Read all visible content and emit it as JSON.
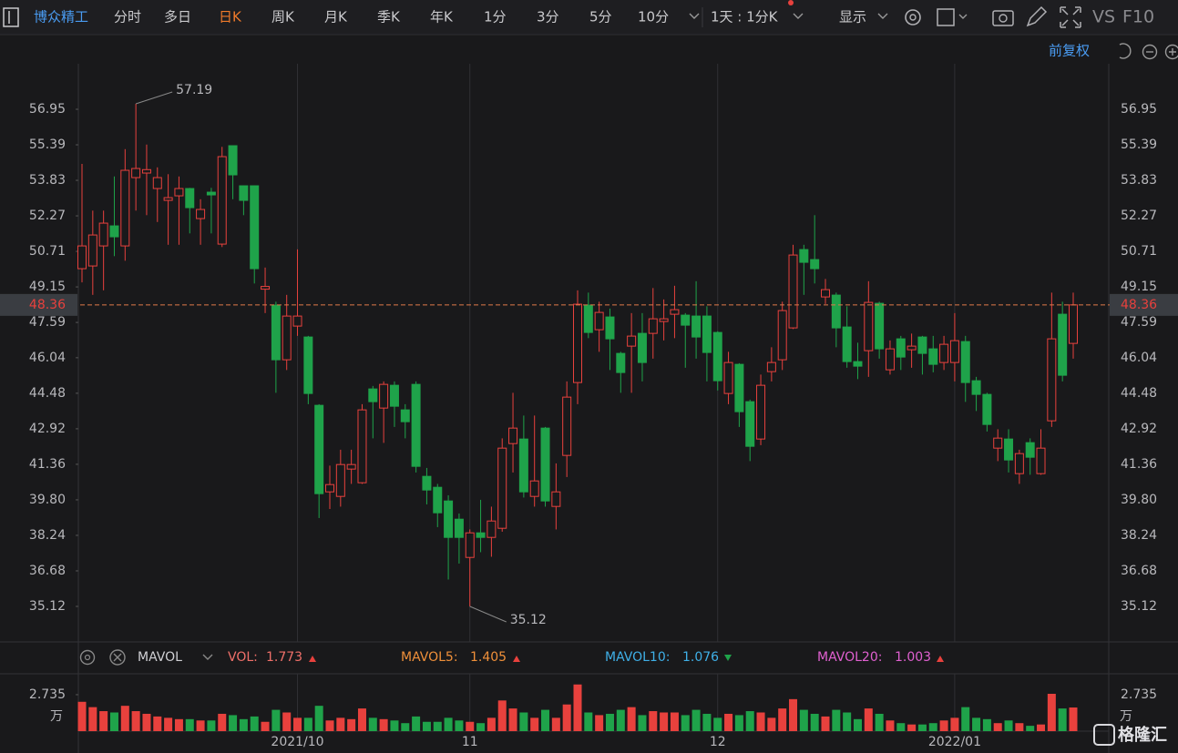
{
  "toolbar": {
    "stock_name": "博众精工",
    "tabs": [
      "分时",
      "多日",
      "日K",
      "周K",
      "月K",
      "季K",
      "年K",
      "1分",
      "3分",
      "5分",
      "10分"
    ],
    "active_tab": "日K",
    "period_select": "1天 : 1分K",
    "display": "显示",
    "vs": "VS",
    "f10": "F10",
    "adjust": "前复权"
  },
  "chart_data": {
    "type": "candlestick",
    "up_color": "#e8413d",
    "down_color": "#1fa34a",
    "categories": [
      null,
      null,
      null,
      null,
      null,
      null,
      null,
      null,
      null,
      null,
      null,
      null,
      null,
      null,
      null,
      null,
      null,
      null,
      null,
      null,
      "2021/10",
      null,
      null,
      null,
      null,
      null,
      null,
      null,
      null,
      null,
      null,
      null,
      null,
      null,
      null,
      null,
      "11",
      null,
      null,
      null,
      null,
      null,
      null,
      null,
      null,
      null,
      null,
      null,
      null,
      null,
      null,
      null,
      null,
      null,
      null,
      null,
      null,
      null,
      null,
      "12",
      null,
      null,
      null,
      null,
      null,
      null,
      null,
      null,
      null,
      null,
      null,
      null,
      null,
      null,
      null,
      null,
      null,
      null,
      null,
      null,
      null,
      "2022/01",
      null,
      null,
      null,
      null,
      null,
      null,
      null,
      null,
      null,
      null,
      null
    ],
    "open": [
      49.95,
      50.07,
      50.95,
      51.83,
      50.95,
      53.95,
      54.15,
      53.47,
      52.95,
      53.15,
      53.47,
      52.15,
      53.31,
      51.03,
      55.35,
      53.59,
      53.59,
      49.05,
      48.35,
      45.95,
      47.43,
      46.95,
      43.95,
      40.15,
      39.95,
      41.15,
      40.55,
      44.67,
      43.83,
      44.83,
      43.75,
      44.87,
      40.83,
      40.35,
      39.75,
      38.95,
      37.27,
      38.35,
      38.15,
      38.55,
      42.27,
      42.47,
      39.95,
      42.95,
      39.51,
      41.75,
      44.95,
      48.35,
      47.27,
      47.83,
      46.23,
      46.55,
      47.11,
      47.11,
      47.63,
      47.95,
      47.91,
      47.87,
      47.87,
      47.15,
      44.47,
      45.75,
      44.11,
      42.47,
      45.43,
      45.95,
      47.35,
      50.79,
      50.35,
      48.71,
      48.79,
      47.39,
      45.87,
      46.35,
      48.43,
      45.51,
      46.87,
      46.39,
      46.95,
      46.43,
      45.83,
      45.83,
      46.75,
      45.03,
      44.43,
      42.07,
      42.47,
      40.95,
      42.31,
      40.95,
      43.27,
      47.95,
      46.67
    ],
    "high": [
      54.55,
      52.5,
      52.5,
      54.0,
      55.2,
      57.19,
      55.4,
      54.4,
      54.1,
      54.0,
      53.5,
      53.0,
      53.5,
      55.3,
      55.35,
      53.6,
      53.6,
      50.0,
      48.5,
      48.8,
      50.8,
      47.0,
      44.0,
      41.3,
      42.0,
      42.0,
      44.0,
      44.8,
      45.0,
      45.0,
      44.0,
      45.0,
      41.2,
      40.5,
      40.0,
      39.2,
      38.5,
      39.8,
      39.5,
      42.5,
      44.5,
      43.5,
      43.5,
      43.0,
      41.4,
      45.0,
      49.0,
      48.9,
      48.5,
      48.2,
      46.3,
      48.0,
      48.0,
      49.1,
      48.6,
      49.2,
      48.0,
      49.4,
      48.3,
      47.2,
      46.3,
      45.8,
      44.2,
      45.3,
      46.5,
      48.5,
      51.0,
      51.0,
      52.3,
      49.5,
      48.9,
      48.3,
      46.7,
      49.4,
      48.5,
      46.8,
      47.0,
      47.1,
      47.0,
      47.0,
      47.0,
      48.0,
      47.0,
      45.2,
      44.5,
      42.9,
      42.9,
      42.0,
      42.5,
      42.9,
      48.9,
      48.5,
      48.9
    ],
    "low": [
      49.35,
      48.8,
      49.0,
      50.5,
      50.3,
      52.5,
      52.3,
      52.0,
      51.0,
      51.0,
      51.5,
      51.0,
      51.5,
      50.9,
      53.0,
      52.3,
      49.3,
      48.0,
      44.5,
      45.5,
      47.0,
      44.0,
      39.0,
      39.4,
      39.5,
      40.5,
      40.5,
      42.5,
      42.3,
      43.0,
      42.5,
      41.0,
      39.6,
      38.6,
      36.3,
      37.0,
      35.12,
      37.5,
      37.3,
      38.4,
      41.0,
      39.9,
      39.5,
      39.5,
      38.5,
      40.8,
      44.0,
      46.9,
      46.3,
      45.5,
      44.5,
      44.5,
      45.0,
      46.0,
      46.8,
      46.9,
      45.6,
      46.0,
      45.0,
      44.6,
      44.0,
      43.0,
      41.5,
      42.2,
      45.0,
      45.5,
      47.3,
      48.8,
      49.3,
      48.4,
      46.5,
      45.6,
      45.1,
      45.2,
      46.0,
      45.3,
      45.5,
      45.6,
      45.3,
      45.4,
      45.5,
      45.0,
      44.1,
      43.7,
      42.8,
      41.5,
      41.0,
      40.5,
      40.9,
      40.9,
      43.0,
      45.0,
      46.0
    ],
    "close": [
      50.95,
      51.43,
      51.95,
      51.35,
      54.27,
      54.35,
      54.3,
      53.95,
      53.07,
      53.47,
      52.63,
      52.55,
      53.19,
      54.87,
      54.07,
      52.95,
      49.95,
      49.17,
      45.95,
      47.87,
      47.87,
      44.47,
      40.07,
      40.47,
      41.35,
      41.35,
      43.75,
      44.11,
      44.87,
      43.91,
      43.23,
      41.27,
      40.23,
      39.23,
      38.15,
      38.15,
      38.35,
      38.15,
      38.87,
      42.07,
      42.95,
      40.15,
      40.63,
      39.75,
      40.15,
      44.31,
      48.39,
      47.15,
      48.03,
      46.87,
      45.39,
      46.99,
      45.83,
      47.75,
      47.75,
      48.15,
      47.47,
      46.95,
      46.27,
      45.03,
      45.83,
      43.67,
      42.15,
      44.83,
      45.83,
      48.11,
      50.55,
      50.23,
      49.95,
      49.03,
      47.35,
      45.87,
      45.67,
      48.47,
      46.43,
      46.43,
      46.07,
      46.55,
      46.23,
      45.75,
      46.63,
      46.79,
      44.95,
      44.43,
      43.11,
      42.51,
      41.55,
      41.83,
      41.67,
      42.07,
      46.87,
      45.27,
      48.36
    ],
    "ylim": [
      33.56,
      58.51
    ],
    "yticks": [
      35.12,
      36.68,
      38.24,
      {
        "value": 39.8,
        "label": "39.80"
      },
      41.36,
      42.92,
      44.48,
      46.04,
      47.59,
      49.15,
      50.71,
      52.27,
      53.83,
      55.39,
      56.95
    ],
    "last_price": 48.36,
    "last_price_color": "#e8413d",
    "volume": {
      "values": [
        2.2,
        1.8,
        1.5,
        1.4,
        1.9,
        1.5,
        1.3,
        1.1,
        1.0,
        0.9,
        0.9,
        0.8,
        0.8,
        1.3,
        1.2,
        0.9,
        1.1,
        0.7,
        1.6,
        1.4,
        1.0,
        1.0,
        1.9,
        0.8,
        1.0,
        0.9,
        1.7,
        1.0,
        0.9,
        0.8,
        0.6,
        1.1,
        0.7,
        0.7,
        1.0,
        0.8,
        0.7,
        0.6,
        1.0,
        2.3,
        1.7,
        1.4,
        1.0,
        1.6,
        1.0,
        2.0,
        3.5,
        1.4,
        1.2,
        1.3,
        1.6,
        1.8,
        1.2,
        1.5,
        1.4,
        1.4,
        1.2,
        1.6,
        1.3,
        1.0,
        1.3,
        1.2,
        1.5,
        1.4,
        1.0,
        1.7,
        2.4,
        1.6,
        1.3,
        1.1,
        1.6,
        1.4,
        0.9,
        1.7,
        1.3,
        0.8,
        0.6,
        0.5,
        0.5,
        0.6,
        0.8,
        1.0,
        1.8,
        1.0,
        0.9,
        0.6,
        0.8,
        0.6,
        0.4,
        0.5,
        2.8,
        1.7,
        1.773
      ],
      "ylim": [
        0,
        3.96
      ],
      "yticks": [
        2.735
      ],
      "unit": "万",
      "indicator": "MAVOL",
      "vol_label": "VOL:",
      "mavol5_label": "MAVOL5:",
      "mavol5": 1.405,
      "mavol10_label": "MAVOL10:",
      "mavol10": 1.076,
      "mavol20_label": "MAVOL20:",
      "mavol20": 1.003
    }
  },
  "watermark": "格隆汇"
}
